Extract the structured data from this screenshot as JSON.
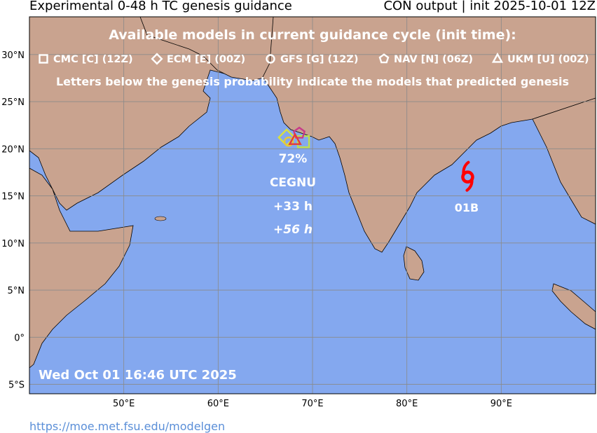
{
  "title_left": "Experimental 0-48 h TC genesis guidance",
  "title_right": "CON output | init 2025-10-01 12Z",
  "legend": {
    "heading": "Available models in current guidance cycle (init time):",
    "models": [
      {
        "label": "CMC [C] (12Z)",
        "shape": "square"
      },
      {
        "label": "ECM [E] (00Z)",
        "shape": "diamond"
      },
      {
        "label": "GFS [G] (12Z)",
        "shape": "circle"
      },
      {
        "label": "NAV [N] (06Z)",
        "shape": "pentagon"
      },
      {
        "label": "UKM [U] (00Z)",
        "shape": "triangle"
      }
    ],
    "note": "Letters below the genesis probability indicate the models that predicted genesis"
  },
  "lat_labels": [
    "30°N",
    "25°N",
    "20°N",
    "15°N",
    "10°N",
    "5°N",
    "0°",
    "5°S"
  ],
  "lon_labels": [
    "50°E",
    "60°E",
    "70°E",
    "80°E",
    "90°E"
  ],
  "genesis": {
    "probability": "72%",
    "models": "CEGNU",
    "lead_time": "+33 h",
    "lead_time_alt": "+56 h",
    "lat": 21.5,
    "lon": 68.0
  },
  "storm": {
    "name": "01B",
    "lat": 17.0,
    "lon": 86.0,
    "symbol_color": "#ff0000",
    "symbol": "tropical-cyclone-icon"
  },
  "timestamp": "Wed Oct 01 16:46 UTC 2025",
  "url": "https://moe.met.fsu.edu/modelgen",
  "colors": {
    "ocean": "#84a8ef",
    "land": "#c9a38f",
    "grid": "#8a8a8a",
    "cmc": "#bfe04a",
    "ecm": "#d8e040",
    "gfs": "#e6c838",
    "nav": "#c83a8a",
    "ukm": "#e63a3a"
  }
}
